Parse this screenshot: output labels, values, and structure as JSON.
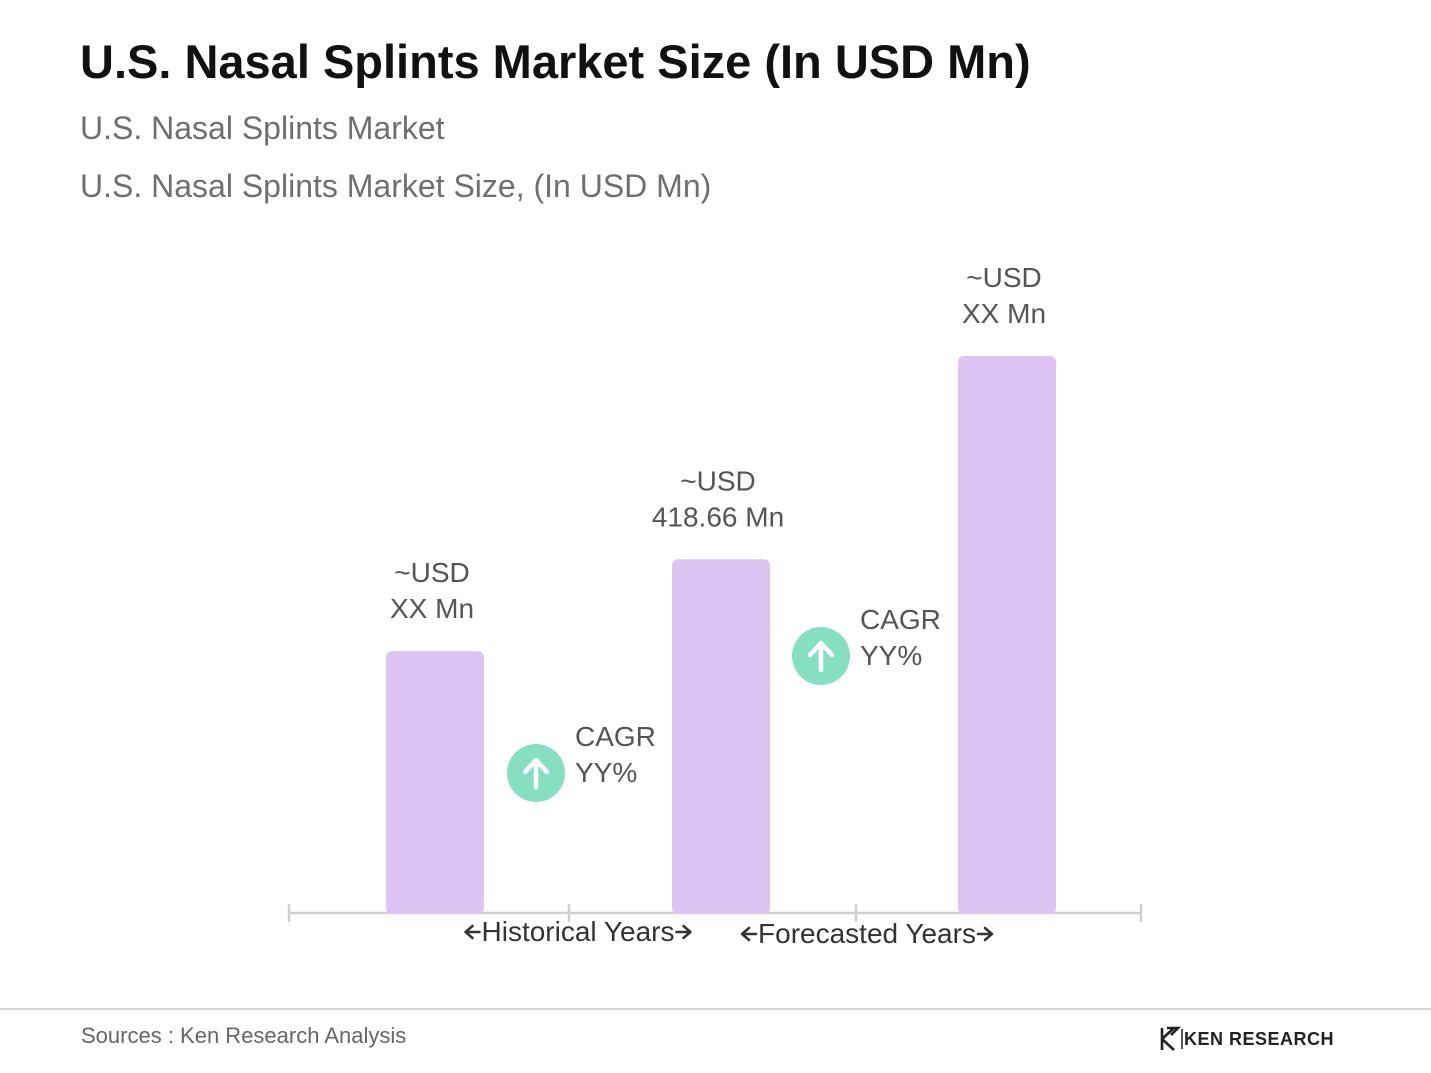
{
  "header": {
    "title": "U.S. Nasal Splints Market Size (In USD Mn)",
    "subtitle": "U.S. Nasal Splints Market",
    "subtitle2": "U.S. Nasal Splints Market Size, (In USD Mn)"
  },
  "chart_data": {
    "type": "bar",
    "categories": [
      "",
      "",
      ""
    ],
    "values": [
      0.47,
      0.635,
      1.0
    ],
    "value_scale": "relative to tallest bar",
    "data_labels": [
      [
        "~USD",
        "XX Mn"
      ],
      [
        "~USD",
        "418.66 Mn"
      ],
      [
        "~USD",
        "XX Mn"
      ]
    ],
    "annotations": [
      {
        "between": [
          0,
          1
        ],
        "lines": [
          "CAGR",
          "YY%"
        ]
      },
      {
        "between": [
          1,
          2
        ],
        "lines": [
          "CAGR",
          "YY%"
        ]
      }
    ],
    "period_labels": [
      "Historical Years",
      "Forecasted Years"
    ],
    "grid": false,
    "legend": "none",
    "colors": {
      "bar": "#dec3f5",
      "cagr_icon": "#85dfc3",
      "axis": "#cfcfcf",
      "label": "#555555"
    }
  },
  "footer": {
    "source": "Sources : Ken Research Analysis",
    "brand": "KEN RESEARCH"
  }
}
